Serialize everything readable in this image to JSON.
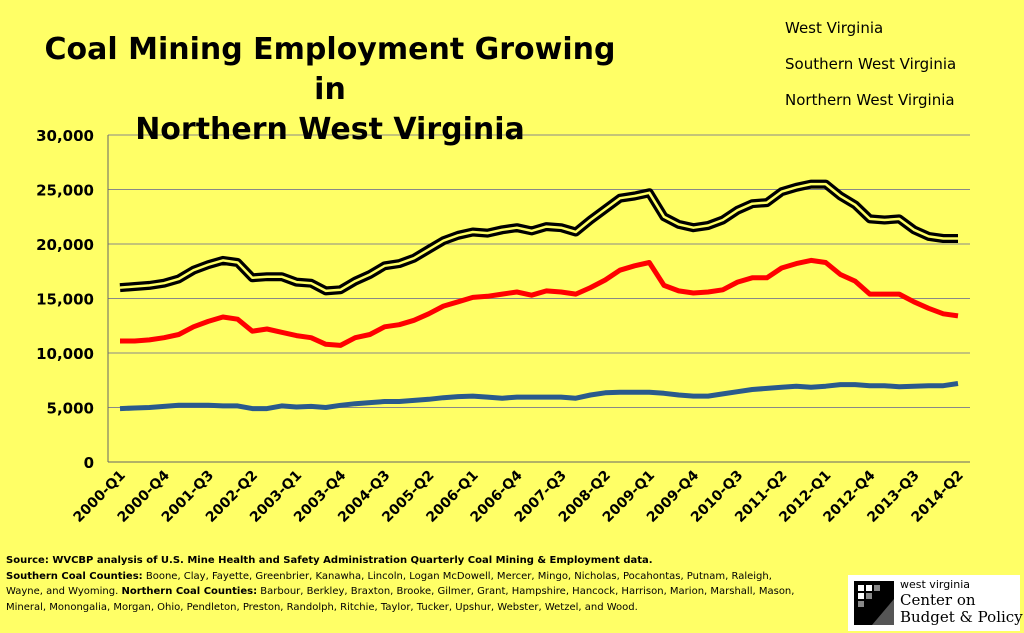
{
  "chart_data": {
    "type": "line",
    "title": "Coal Mining Employment Growing in Northern West Virginia",
    "title_lines": [
      "Coal Mining Employment Growing in",
      "Northern West Virginia"
    ],
    "xlabel": "",
    "ylabel": "",
    "ylim": [
      0,
      30000
    ],
    "y_ticks": [
      "0",
      "5,000",
      "10,000",
      "15,000",
      "20,000",
      "25,000",
      "30,000"
    ],
    "y_tick_values": [
      0,
      5000,
      10000,
      15000,
      20000,
      25000,
      30000
    ],
    "x_tick_labels": [
      "2000-Q1",
      "2000-Q4",
      "2001-Q3",
      "2002-Q2",
      "2003-Q1",
      "2003-Q4",
      "2004-Q3",
      "2005-Q2",
      "2006-Q1",
      "2006-Q4",
      "2007-Q3",
      "2008-Q2",
      "2009-Q1",
      "2009-Q4",
      "2010-Q3",
      "2011-Q2",
      "2012-Q1",
      "2012-Q4",
      "2013-Q3",
      "2014-Q2"
    ],
    "grid": true,
    "legend_position": "top-right",
    "categories": [
      "2000-Q1",
      "2000-Q2",
      "2000-Q3",
      "2000-Q4",
      "2001-Q1",
      "2001-Q2",
      "2001-Q3",
      "2001-Q4",
      "2002-Q1",
      "2002-Q2",
      "2002-Q3",
      "2002-Q4",
      "2003-Q1",
      "2003-Q2",
      "2003-Q3",
      "2003-Q4",
      "2004-Q1",
      "2004-Q2",
      "2004-Q3",
      "2004-Q4",
      "2005-Q1",
      "2005-Q2",
      "2005-Q3",
      "2005-Q4",
      "2006-Q1",
      "2006-Q2",
      "2006-Q3",
      "2006-Q4",
      "2007-Q1",
      "2007-Q2",
      "2007-Q3",
      "2007-Q4",
      "2008-Q1",
      "2008-Q2",
      "2008-Q3",
      "2008-Q4",
      "2009-Q1",
      "2009-Q2",
      "2009-Q3",
      "2009-Q4",
      "2010-Q1",
      "2010-Q2",
      "2010-Q3",
      "2010-Q4",
      "2011-Q1",
      "2011-Q2",
      "2011-Q3",
      "2011-Q4",
      "2012-Q1",
      "2012-Q2",
      "2012-Q3",
      "2012-Q4",
      "2013-Q1",
      "2013-Q2",
      "2013-Q3",
      "2013-Q4",
      "2014-Q1",
      "2014-Q2"
    ],
    "series": [
      {
        "name": "West Virginia",
        "color": "#000000",
        "style": "outlined",
        "values": [
          16000,
          16100,
          16200,
          16400,
          16800,
          17600,
          18100,
          18500,
          18300,
          16900,
          17000,
          17000,
          16500,
          16400,
          15700,
          15800,
          16600,
          17200,
          18000,
          18200,
          18700,
          19500,
          20300,
          20800,
          21100,
          21000,
          21300,
          21500,
          21200,
          21600,
          21500,
          21100,
          22200,
          23200,
          24200,
          24400,
          24700,
          22500,
          21800,
          21500,
          21700,
          22200,
          23100,
          23700,
          23800,
          24800,
          25200,
          25500,
          25500,
          24400,
          23600,
          22300,
          22200,
          22300,
          21300,
          20700,
          20500,
          20500
        ]
      },
      {
        "name": "Southern West Virginia",
        "color": "#ff0000",
        "values": [
          11100,
          11100,
          11200,
          11400,
          11700,
          12400,
          12900,
          13300,
          13100,
          12000,
          12200,
          11900,
          11600,
          11400,
          10800,
          10700,
          11400,
          11700,
          12400,
          12600,
          13000,
          13600,
          14300,
          14700,
          15100,
          15200,
          15400,
          15600,
          15300,
          15700,
          15600,
          15400,
          16000,
          16700,
          17600,
          18000,
          18300,
          16200,
          15700,
          15500,
          15600,
          15800,
          16500,
          16900,
          16900,
          17800,
          18200,
          18500,
          18300,
          17200,
          16600,
          15400,
          15400,
          15400,
          14700,
          14100,
          13600,
          13400
        ]
      },
      {
        "name": "Northern West Virginia",
        "color": "#2a5a8c",
        "values": [
          4900,
          4950,
          5000,
          5100,
          5200,
          5200,
          5200,
          5150,
          5150,
          4900,
          4900,
          5150,
          5050,
          5100,
          5000,
          5200,
          5350,
          5450,
          5550,
          5550,
          5650,
          5750,
          5900,
          6000,
          6050,
          5950,
          5850,
          5950,
          5950,
          5950,
          5950,
          5850,
          6150,
          6350,
          6400,
          6400,
          6400,
          6300,
          6150,
          6050,
          6050,
          6250,
          6450,
          6650,
          6750,
          6850,
          6950,
          6850,
          6950,
          7100,
          7100,
          7000,
          7000,
          6900,
          6950,
          7000,
          7000,
          7200
        ]
      }
    ]
  },
  "footnotes": {
    "source": "Source: WVCBP analysis of U.S. Mine Health and Safety Administration Quarterly Coal Mining & Employment data.",
    "southern_label": "Southern Coal Counties:",
    "southern_text": " Boone, Clay, Fayette, Greenbrier, Kanawha, Lincoln, Logan McDowell, Mercer, Mingo, Nicholas, Pocahontas, Putnam, Raleigh, Wayne, and Wyoming.",
    "northern_label": "Northern Coal Counties:",
    "northern_text": " Barbour, Berkley, Braxton, Brooke, Gilmer, Grant, Hampshire, Hancock, Harrison, Marion, Marshall, Mason, Mineral, Monongalia, Morgan, Ohio, Pendleton, Preston, Randolph, Ritchie, Taylor, Tucker, Upshur, Webster, Wetzel, and Wood."
  },
  "logo": {
    "line1": "west virginia",
    "line2": "Center on",
    "line3": "Budget & Policy"
  },
  "colors": {
    "background": "#ffff66",
    "west_virginia": "#000000",
    "southern": "#ff0000",
    "northern": "#2a5a8c"
  }
}
